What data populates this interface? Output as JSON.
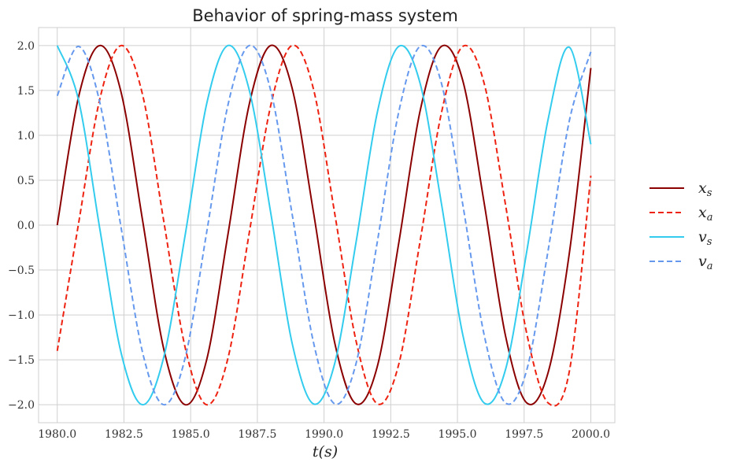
{
  "chart_data": {
    "type": "line",
    "title": "Behavior of spring-mass system",
    "xlabel": "t(s)",
    "ylabel": "",
    "xlim": [
      1979.3,
      2000.9
    ],
    "ylim": [
      -2.2,
      2.2
    ],
    "xticks": [
      1980.0,
      1982.5,
      1985.0,
      1987.5,
      1990.0,
      1992.5,
      1995.0,
      1997.5,
      2000.0
    ],
    "xtick_labels": [
      "1980.0",
      "1982.5",
      "1985.0",
      "1987.5",
      "1990.0",
      "1992.5",
      "1995.0",
      "1997.5",
      "2000.0"
    ],
    "yticks": [
      2.0,
      1.5,
      1.0,
      0.5,
      0.0,
      -0.5,
      -1.0,
      -1.5,
      -2.0
    ],
    "ytick_labels": [
      "2.0",
      "1.5",
      "1.0",
      "0.5",
      "0.0",
      "−0.5",
      "−1.0",
      "−1.5",
      "−2.0"
    ],
    "grid": true,
    "legend_position": "right",
    "series": [
      {
        "name": "x",
        "sub": "s",
        "color": "#8b0000",
        "dash": "solid",
        "x": [
          1980.0,
          1980.8,
          1981.6,
          1982.4,
          1983.2,
          1984.0,
          1984.8,
          1985.6,
          1986.4,
          1987.2,
          1988.0,
          1988.8,
          1989.6,
          1990.4,
          1991.2,
          1992.0,
          1992.8,
          1993.6,
          1994.4,
          1995.2,
          1996.0,
          1996.8,
          1997.6,
          1998.4,
          1999.2,
          2000.0
        ],
        "y": [
          0.0,
          1.43,
          2.0,
          1.47,
          0.05,
          -1.39,
          -2.0,
          -1.5,
          -0.1,
          1.35,
          2.0,
          1.53,
          0.15,
          -1.31,
          -1.99,
          -1.57,
          -0.2,
          1.27,
          1.99,
          1.61,
          0.25,
          -1.23,
          -1.98,
          -1.64,
          -0.3,
          1.75
        ]
      },
      {
        "name": "x",
        "sub": "a",
        "color": "#ee2211",
        "dash": "dashed",
        "x": [
          1980.0,
          1980.8,
          1981.6,
          1982.4,
          1983.2,
          1984.0,
          1984.8,
          1985.6,
          1986.4,
          1987.2,
          1988.0,
          1988.8,
          1989.6,
          1990.4,
          1991.2,
          1992.0,
          1992.8,
          1993.6,
          1994.4,
          1995.2,
          1996.0,
          1996.8,
          1997.6,
          1998.4,
          1999.2,
          2000.0
        ],
        "y": [
          -1.4,
          0.02,
          1.41,
          2.0,
          1.45,
          0.03,
          -1.37,
          -2.0,
          -1.48,
          -0.08,
          1.33,
          2.0,
          1.52,
          0.13,
          -1.29,
          -1.99,
          -1.55,
          -0.18,
          1.25,
          1.99,
          1.58,
          0.23,
          -1.21,
          -1.98,
          -1.62,
          0.55
        ]
      },
      {
        "name": "v",
        "sub": "s",
        "color": "#33ccee",
        "dash": "solid",
        "x": [
          1980.0,
          1980.8,
          1981.6,
          1982.4,
          1983.2,
          1984.0,
          1984.8,
          1985.6,
          1986.4,
          1987.2,
          1988.0,
          1988.8,
          1989.6,
          1990.4,
          1991.2,
          1992.0,
          1992.8,
          1993.6,
          1994.4,
          1995.2,
          1996.0,
          1996.8,
          1997.6,
          1998.4,
          1999.2,
          2000.0
        ],
        "y": [
          2.0,
          1.39,
          -0.05,
          -1.43,
          -2.0,
          -1.46,
          -0.1,
          1.35,
          2.0,
          1.5,
          0.14,
          -1.31,
          -1.99,
          -1.54,
          -0.19,
          1.26,
          1.99,
          1.58,
          0.24,
          -1.22,
          -1.98,
          -1.61,
          -0.29,
          1.18,
          1.98,
          0.9
        ]
      },
      {
        "name": "v",
        "sub": "a",
        "color": "#6699ee",
        "dash": "dashed",
        "x": [
          1980.0,
          1980.8,
          1981.6,
          1982.4,
          1983.2,
          1984.0,
          1984.8,
          1985.6,
          1986.4,
          1987.2,
          1988.0,
          1988.8,
          1989.6,
          1990.4,
          1991.2,
          1992.0,
          1992.8,
          1993.6,
          1994.4,
          1995.2,
          1996.0,
          1996.8,
          1997.6,
          1998.4,
          1999.2,
          2000.0
        ],
        "y": [
          1.44,
          1.99,
          1.36,
          -0.04,
          -1.42,
          -2.0,
          -1.47,
          -0.08,
          1.34,
          2.0,
          1.5,
          0.13,
          -1.3,
          -1.99,
          -1.54,
          -0.18,
          1.26,
          1.99,
          1.58,
          0.23,
          -1.22,
          -1.98,
          -1.61,
          -0.28,
          1.17,
          1.93
        ]
      }
    ]
  }
}
